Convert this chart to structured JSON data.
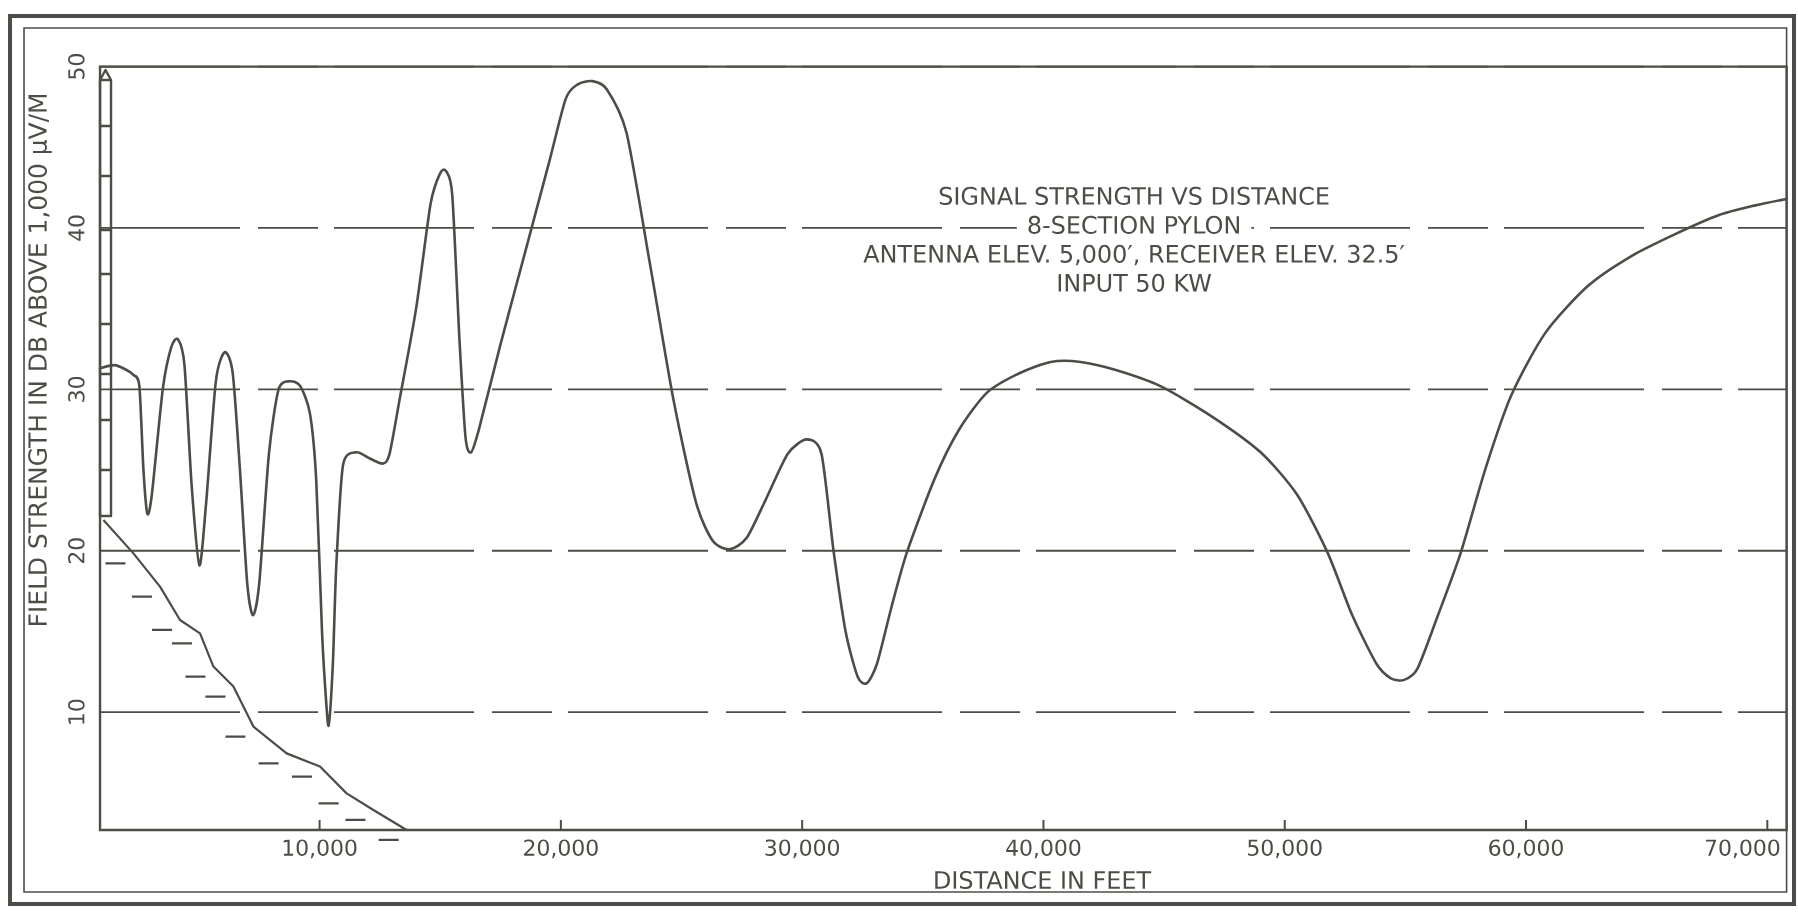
{
  "chart_data": {
    "type": "line",
    "title": "SIGNAL STRENGTH VS DISTANCE",
    "subtitle": "8-SECTION PYLON",
    "annotations": [
      "ANTENNA ELEV. 5,000′, RECEIVER ELEV. 32.5′",
      "INPUT 50 KW"
    ],
    "xlabel": "DISTANCE IN FEET",
    "ylabel": "FIELD STRENGTH IN DB ABOVE 1,000 μV/M",
    "xlim": [
      900,
      70800
    ],
    "ylim": [
      2.7,
      50
    ],
    "xticks": [
      {
        "value": 10000,
        "label": "10,000"
      },
      {
        "value": 20000,
        "label": "20,000"
      },
      {
        "value": 30000,
        "label": "30,000"
      },
      {
        "value": 40000,
        "label": "40,000"
      },
      {
        "value": 50000,
        "label": "50,000"
      },
      {
        "value": 60000,
        "label": "60,000"
      },
      {
        "value": 70000,
        "label": "70,000"
      }
    ],
    "yticks": [
      10,
      20,
      30,
      40,
      50
    ],
    "grid": "y",
    "color": "#4b4e46",
    "x": [
      900,
      1500,
      2000,
      2280,
      2530,
      2700,
      2860,
      3050,
      3500,
      3850,
      4130,
      4400,
      4700,
      5020,
      5300,
      5700,
      6070,
      6400,
      6700,
      7000,
      7240,
      7500,
      7900,
      8300,
      8760,
      9200,
      9600,
      9860,
      10100,
      10270,
      10380,
      10550,
      10690,
      10970,
      11520,
      12100,
      12630,
      12900,
      13320,
      14000,
      14600,
      15000,
      15250,
      15500,
      15800,
      16050,
      16280,
      16600,
      17500,
      18500,
      19500,
      20200,
      20700,
      21300,
      21900,
      22720,
      23700,
      24660,
      25600,
      26300,
      27010,
      27700,
      28500,
      29400,
      30190,
      30800,
      31300,
      31800,
      32300,
      32680,
      33100,
      33700,
      34340,
      35500,
      36500,
      37660,
      39000,
      40300,
      41540,
      43000,
      44850,
      47000,
      49000,
      50500,
      51770,
      52800,
      53800,
      54400,
      54950,
      55500,
      56300,
      57300,
      58300,
      59380,
      60800,
      62560,
      64300,
      66160,
      68000,
      69500,
      70800
    ],
    "values": [
      31.3,
      31.5,
      31.2,
      30.9,
      30.2,
      25,
      22.3,
      23.5,
      30,
      32.6,
      33.1,
      31.5,
      24,
      19.1,
      23,
      30.5,
      32.3,
      31,
      25,
      18,
      16.0,
      18,
      26,
      30,
      30.5,
      30.2,
      28.5,
      24.4,
      15,
      10.7,
      9.2,
      13,
      19,
      25.3,
      26.1,
      25.7,
      25.4,
      26,
      29.4,
      35,
      41.5,
      43.4,
      43.5,
      42,
      33,
      27,
      26.1,
      27.5,
      32.8,
      38.4,
      44,
      48,
      48.9,
      49.1,
      48.6,
      45.9,
      37.7,
      29.4,
      23,
      20.6,
      20.1,
      20.8,
      23.2,
      26,
      26.9,
      26,
      20,
      15,
      12.2,
      11.8,
      13,
      16.5,
      19.9,
      24.5,
      27.5,
      29.8,
      31,
      31.7,
      31.7,
      31.2,
      30.2,
      28.3,
      26.1,
      23.5,
      19.9,
      16,
      13,
      12.1,
      12.0,
      12.7,
      15.8,
      19.9,
      25,
      29.6,
      33.5,
      36.4,
      38.2,
      39.6,
      40.8,
      41.4,
      41.8
    ]
  }
}
